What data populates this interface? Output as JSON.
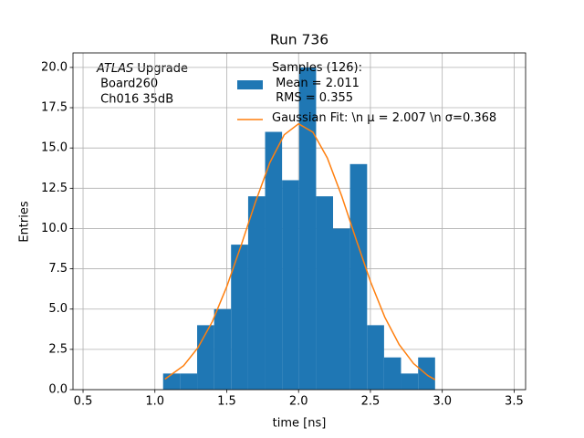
{
  "chart_data": {
    "type": "histogram",
    "title": "Run 736",
    "xlabel": "time [ns]",
    "ylabel": "Entries",
    "annotation": [
      "ATLAS",
      "Upgrade",
      " Board260",
      " Ch016 35dB"
    ],
    "series": [
      {
        "name": "Samples (126):\n Mean = 2.011\n RMS = 0.355",
        "color": "#1f77b4",
        "bins": [
          1.057,
          1.175,
          1.294,
          1.412,
          1.53,
          1.649,
          1.767,
          1.885,
          2.004,
          2.122,
          2.24,
          2.358,
          2.477,
          2.595,
          2.713,
          2.832,
          2.95
        ],
        "values": [
          1,
          1,
          4,
          5,
          9,
          12,
          16,
          13,
          20,
          12,
          10,
          14,
          4,
          2,
          1,
          2
        ]
      },
      {
        "name": "Gaussian Fit: \\n μ = 2.007 \\n σ=0.368",
        "color": "#ff7f0e",
        "type": "line",
        "x": [
          1.07,
          1.2,
          1.3,
          1.4,
          1.5,
          1.6,
          1.7,
          1.8,
          1.9,
          2.0,
          2.1,
          2.2,
          2.3,
          2.4,
          2.5,
          2.6,
          2.7,
          2.8,
          2.9,
          2.95
        ],
        "values": [
          0.65,
          1.49,
          2.61,
          4.23,
          6.39,
          8.95,
          11.65,
          14.09,
          15.82,
          16.5,
          15.98,
          14.38,
          12.02,
          9.33,
          6.72,
          4.5,
          2.8,
          1.62,
          0.87,
          0.62
        ]
      }
    ],
    "xlim": [
      0.43,
      3.58
    ],
    "ylim": [
      0,
      20.9
    ],
    "xticks": [
      0.5,
      {
        "value": 1,
        "label": "1.0"
      },
      1.5,
      {
        "value": 2,
        "label": "2.0"
      },
      2.5,
      {
        "value": 3,
        "label": "3.0"
      },
      3.5
    ],
    "yticks": [
      {
        "value": 0,
        "label": "0.0"
      },
      2.5,
      {
        "value": 5,
        "label": "5.0"
      },
      7.5,
      {
        "value": 10,
        "label": "10.0"
      },
      12.5,
      {
        "value": 15,
        "label": "15.0"
      },
      17.5,
      {
        "value": 20,
        "label": "20.0"
      }
    ],
    "grid": true
  }
}
